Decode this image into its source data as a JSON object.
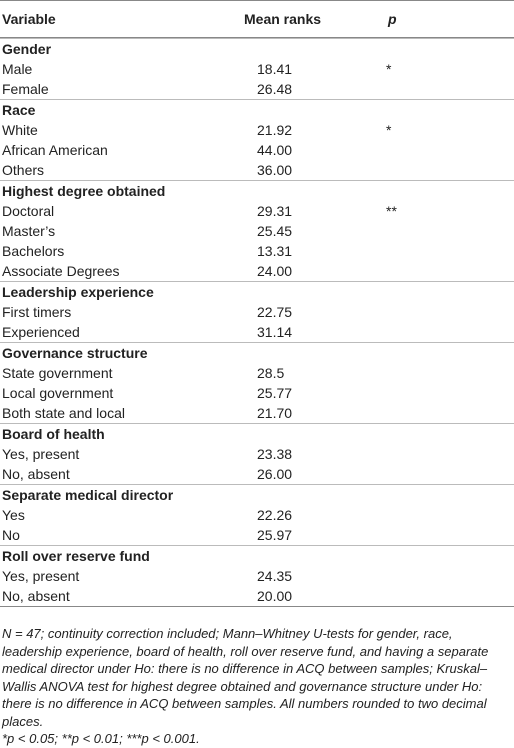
{
  "table": {
    "header": [
      "Variable",
      "Mean ranks",
      "p"
    ],
    "sections": [
      {
        "title": "Gender",
        "rows": [
          [
            "Male",
            "18.41",
            "*"
          ],
          [
            "Female",
            "26.48",
            null
          ]
        ]
      },
      {
        "title": "Race",
        "rows": [
          [
            "White",
            "21.92",
            "*"
          ],
          [
            "African American",
            "44.00",
            null
          ],
          [
            "Others",
            "36.00",
            null
          ]
        ]
      },
      {
        "title": "Highest degree obtained",
        "rows": [
          [
            "Doctoral",
            "29.31",
            "**"
          ],
          [
            "Master’s",
            "25.45",
            null
          ],
          [
            "Bachelors",
            "13.31",
            null
          ],
          [
            "Associate Degrees",
            "24.00",
            null
          ]
        ]
      },
      {
        "title": "Leadership experience",
        "rows": [
          [
            "First timers",
            "22.75",
            null
          ],
          [
            "Experienced",
            "31.14",
            null
          ]
        ]
      },
      {
        "title": "Governance structure",
        "rows": [
          [
            "State government",
            "28.5",
            null
          ],
          [
            "Local government",
            "25.77",
            null
          ],
          [
            "Both state and local",
            "21.70",
            null
          ]
        ]
      },
      {
        "title": "Board of health",
        "rows": [
          [
            "Yes, present",
            "23.38",
            null
          ],
          [
            "No, absent",
            "26.00",
            null
          ]
        ]
      },
      {
        "title": "Separate medical director",
        "rows": [
          [
            "Yes",
            "22.26",
            null
          ],
          [
            "No",
            "25.97",
            null
          ]
        ]
      },
      {
        "title": "Roll over reserve fund",
        "rows": [
          [
            "Yes, present",
            "24.35",
            null
          ],
          [
            "No, absent",
            "20.00",
            null
          ]
        ]
      }
    ]
  },
  "notes": {
    "main": "N = 47; continuity correction included; Mann–Whitney U-tests for gender, race, leadership experience, board of health, roll over reserve fund, and having a separate medical director under Ho: there is no difference in ACQ between samples; Kruskal–Wallis ANOVA test for highest degree obtained and governance structure under Ho: there is no difference in ACQ between samples. All numbers rounded to two decimal places.",
    "significance": "*p < 0.05; **p < 0.01; ***p < 0.001."
  }
}
